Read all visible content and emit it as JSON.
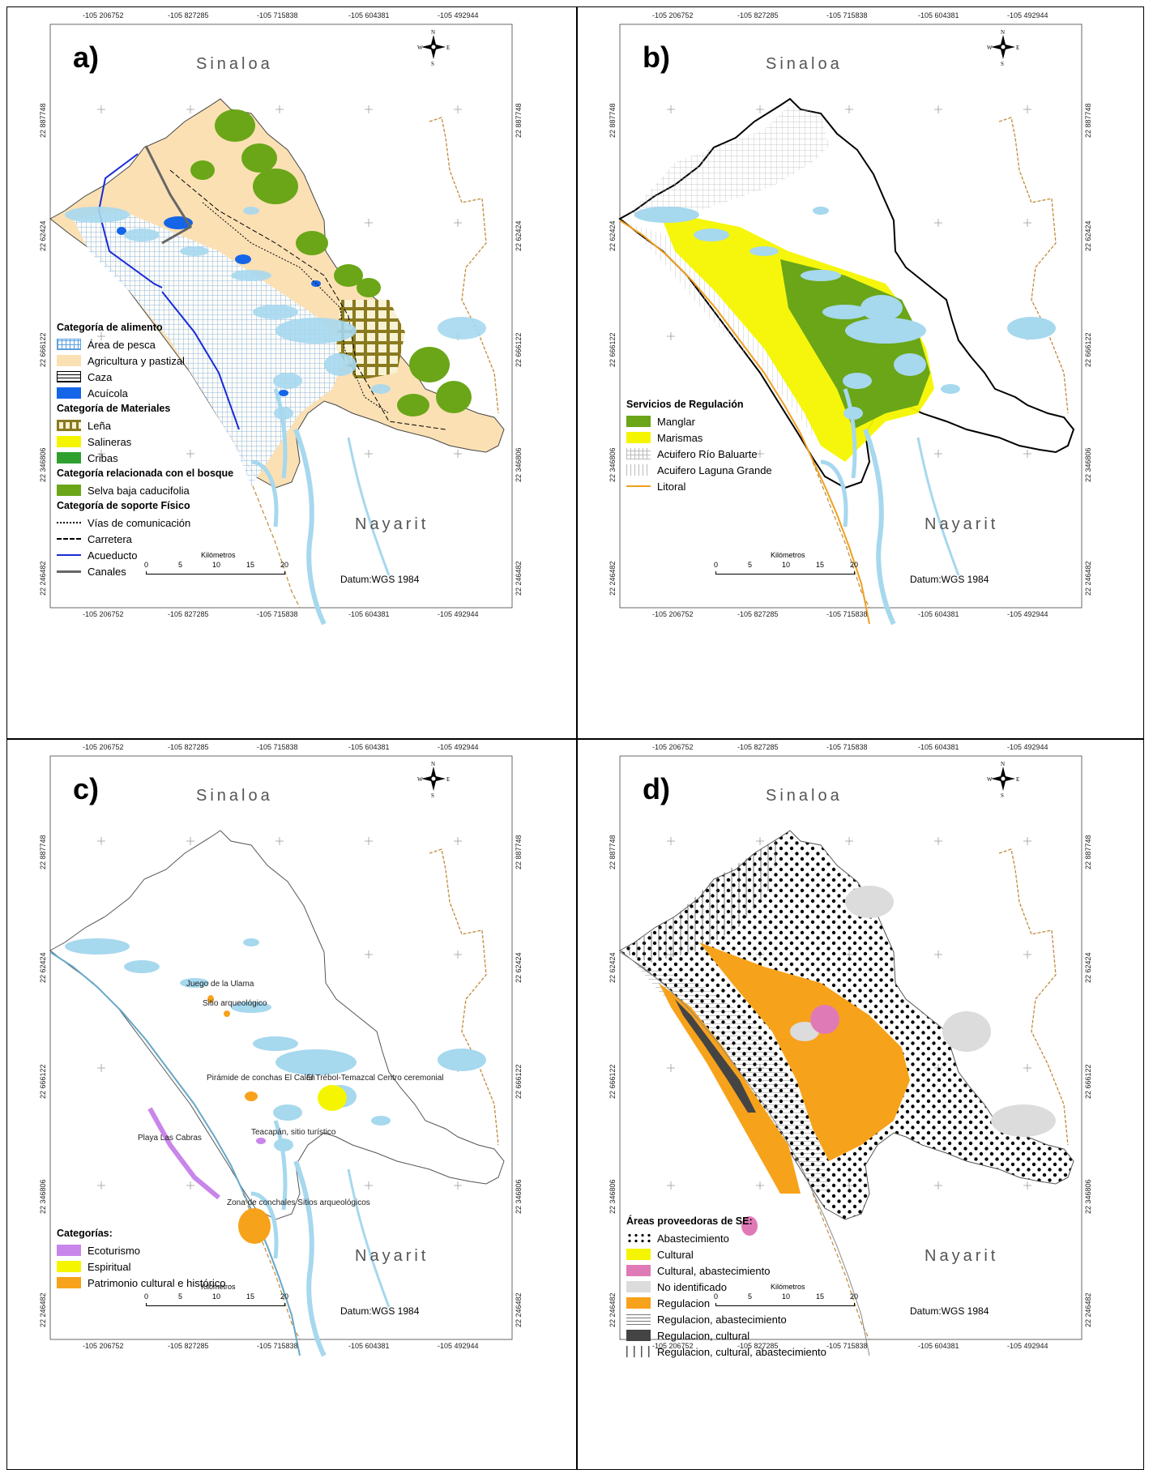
{
  "coords": {
    "top": [
      "-105 206752",
      "-105 827285",
      "-105 715838",
      "-105 604381",
      "-105 492944"
    ],
    "side": [
      "22 887748",
      "22 62424",
      "22 666122",
      "22 346806",
      "22 246482"
    ]
  },
  "states": {
    "north": "Sinaloa",
    "south": "Nayarit"
  },
  "scale_bar": {
    "title": "Kilómetros",
    "ticks": [
      "0",
      "5",
      "10",
      "15",
      "20"
    ]
  },
  "datum": "Datum:WGS 1984",
  "compass": {
    "n": "N",
    "s": "S",
    "e": "E",
    "w": "W"
  },
  "colors": {
    "water": "#a6d8ee",
    "agri": "#fbe0b4",
    "forest": "#6aa618",
    "aquaculture": "#1565e8",
    "yellow": "#f5f500",
    "orange": "#f7a21b",
    "purple": "#c986ea",
    "pink": "#e07ab6",
    "grey": "#dcdcdc",
    "dark": "#444444",
    "border": "#c08b3a"
  },
  "panels": [
    {
      "letter": "a)",
      "legend": {
        "sections": [
          {
            "heading": "Categoría de alimento",
            "items": [
              {
                "label": "Área de pesca",
                "symbol": "grid-blue"
              },
              {
                "label": "Agricultura y pastizal",
                "symbol": "fill-agri"
              },
              {
                "label": "Caza",
                "symbol": "hlines"
              },
              {
                "label": "Acuícola",
                "symbol": "fill-blue"
              }
            ]
          },
          {
            "heading": "Categoría de Materiales",
            "items": [
              {
                "label": "Leña",
                "symbol": "lena"
              },
              {
                "label": "Salineras",
                "symbol": "fill-yellow"
              },
              {
                "label": "Cribas",
                "symbol": "fill-green"
              }
            ]
          },
          {
            "heading": "Categoría relacionada con el bosque",
            "items": [
              {
                "label": "Selva baja caducifolia",
                "symbol": "fill-forest"
              }
            ]
          },
          {
            "heading": "Categoría de soporte Físico",
            "items": [
              {
                "label": "Vías de comunicación",
                "symbol": "dotted"
              },
              {
                "label": "Carretera",
                "symbol": "dashed"
              },
              {
                "label": "Acueducto",
                "symbol": "line-blue"
              },
              {
                "label": "Canales",
                "symbol": "line-grey"
              }
            ]
          }
        ]
      }
    },
    {
      "letter": "b)",
      "legend": {
        "sections": [
          {
            "heading": "Servicios de Regulación",
            "items": [
              {
                "label": "Manglar",
                "symbol": "fill-forest"
              },
              {
                "label": "Marismas",
                "symbol": "fill-yellow"
              },
              {
                "label": "Acuifero Río Baluarte",
                "symbol": "grid-grey"
              },
              {
                "label": "Acuifero Laguna Grande",
                "symbol": "vlines"
              },
              {
                "label": "Litoral",
                "symbol": "line-orange"
              }
            ]
          }
        ]
      }
    },
    {
      "letter": "c)",
      "sites": [
        "Juego de la Ulama",
        "Sitio arqueológico",
        "Pirámide de conchas El Calón",
        "El Trébol-Temazcal Centro ceremonial",
        "Teacapán, sitio turístico",
        "Playa Las Cabras",
        "Zona de conchales Sitios arqueológicos"
      ],
      "legend": {
        "sections": [
          {
            "heading": "Categorías:",
            "items": [
              {
                "label": "Ecoturismo",
                "symbol": "fill-purple"
              },
              {
                "label": "Espiritual",
                "symbol": "fill-yellow"
              },
              {
                "label": "Patrimonio cultural e histórico",
                "symbol": "fill-orange"
              }
            ]
          }
        ]
      }
    },
    {
      "letter": "d)",
      "legend": {
        "sections": [
          {
            "heading": "Áreas proveedoras de SE:",
            "items": [
              {
                "label": "Abastecimiento",
                "symbol": "dots"
              },
              {
                "label": "Cultural",
                "symbol": "fill-yellow"
              },
              {
                "label": "Cultural, abastecimiento",
                "symbol": "fill-pink"
              },
              {
                "label": "No identificado",
                "symbol": "fill-grey"
              },
              {
                "label": "Regulacion",
                "symbol": "fill-orange"
              },
              {
                "label": "Regulacion, abastecimiento",
                "symbol": "hlines-grey"
              },
              {
                "label": "Regulacion, cultural",
                "symbol": "fill-dark"
              },
              {
                "label": "Regulacion, cultural, abastecimiento",
                "symbol": "vlines-dark"
              }
            ]
          }
        ]
      }
    }
  ]
}
